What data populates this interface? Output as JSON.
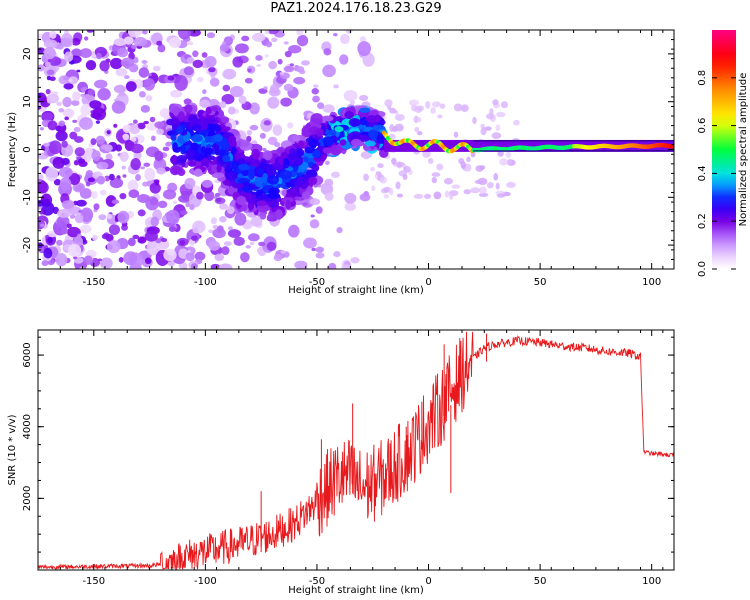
{
  "figure": {
    "title": "PAZ1.2024.176.18.23.G29"
  },
  "chart_data": [
    {
      "type": "heatmap",
      "title": "PAZ1.2024.176.18.23.G29",
      "xlabel": "Height of straight line (km)",
      "ylabel": "Frequency (Hz)",
      "xlim": [
        -175,
        110
      ],
      "ylim": [
        -25,
        25
      ],
      "xticks": [
        -150,
        -100,
        -50,
        0,
        50,
        100
      ],
      "yticks": [
        -20,
        -10,
        0,
        10,
        20
      ],
      "colorbar": {
        "label": "Normalized spectral amplitude",
        "range": [
          0,
          1
        ],
        "ticks": [
          0.0,
          0.2,
          0.4,
          0.6,
          0.8
        ],
        "colormap": [
          "#ffffff",
          "#f2d9ff",
          "#cc88ff",
          "#7a00e6",
          "#0000ff",
          "#00ffff",
          "#00ff00",
          "#ffff00",
          "#ff7f00",
          "#ff0000",
          "#ff0080"
        ]
      },
      "ridge": {
        "description_values": [
          {
            "x": -110,
            "freq": 2
          },
          {
            "x": -95,
            "freq": 2
          },
          {
            "x": -85,
            "freq": -5
          },
          {
            "x": -70,
            "freq": -8
          },
          {
            "x": -55,
            "freq": -3
          },
          {
            "x": -45,
            "freq": 3
          },
          {
            "x": -30,
            "freq": 5
          },
          {
            "x": -20,
            "freq": 3
          },
          {
            "x": -10,
            "freq": 1
          },
          {
            "x": 0,
            "freq": 1
          },
          {
            "x": 20,
            "freq": 0
          },
          {
            "x": 60,
            "freq": 0.5
          },
          {
            "x": 110,
            "freq": 0.8
          }
        ]
      },
      "grid": false
    },
    {
      "type": "line",
      "xlabel": "Height of straight line (km)",
      "ylabel": "SNR (10 * v/v)",
      "xlim": [
        -175,
        110
      ],
      "ylim": [
        0,
        6700
      ],
      "xticks": [
        -150,
        -100,
        -50,
        0,
        50,
        100
      ],
      "yticks": [
        2000,
        4000,
        6000
      ],
      "series": [
        {
          "color": "#e8191c",
          "points": [
            [
              -175,
              80
            ],
            [
              -160,
              90
            ],
            [
              -140,
              110
            ],
            [
              -125,
              120
            ],
            [
              -115,
              200
            ],
            [
              -110,
              350
            ],
            [
              -100,
              500
            ],
            [
              -90,
              650
            ],
            [
              -80,
              800
            ],
            [
              -70,
              1000
            ],
            [
              -60,
              1300
            ],
            [
              -55,
              1600
            ],
            [
              -50,
              1900
            ],
            [
              -45,
              2300
            ],
            [
              -40,
              2600
            ],
            [
              -35,
              2600
            ],
            [
              -30,
              2300
            ],
            [
              -25,
              2400
            ],
            [
              -20,
              2600
            ],
            [
              -15,
              2900
            ],
            [
              -10,
              3200
            ],
            [
              -5,
              3600
            ],
            [
              0,
              4100
            ],
            [
              5,
              4500
            ],
            [
              10,
              5000
            ],
            [
              15,
              5500
            ],
            [
              20,
              5900
            ],
            [
              25,
              6200
            ],
            [
              30,
              6300
            ],
            [
              40,
              6400
            ],
            [
              50,
              6350
            ],
            [
              60,
              6250
            ],
            [
              70,
              6200
            ],
            [
              80,
              6100
            ],
            [
              90,
              6050
            ],
            [
              95,
              5950
            ],
            [
              96.5,
              3300
            ],
            [
              100,
              3250
            ],
            [
              110,
              3200
            ]
          ],
          "spikes": [
            {
              "x": -34,
              "y": 4650
            },
            {
              "x": -48,
              "y": 3650
            },
            {
              "x": -75,
              "y": 2200
            },
            {
              "x": -10,
              "y": 4000
            },
            {
              "x": 7,
              "y": 6300
            },
            {
              "x": 10,
              "y": 2150
            },
            {
              "x": 18,
              "y": 5800
            },
            {
              "x": 26,
              "y": 6600
            },
            {
              "x": -3,
              "y": 4700
            }
          ]
        }
      ],
      "grid": false
    }
  ]
}
